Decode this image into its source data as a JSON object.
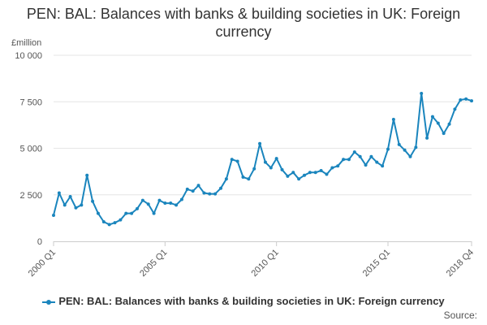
{
  "chart_data": {
    "type": "line",
    "title": "PEN: BAL: Balances with banks & building societies in UK: Foreign currency",
    "ylabel": "£million",
    "xlabel": "",
    "ylim": [
      0,
      10000
    ],
    "yticks": [
      0,
      2500,
      5000,
      7500,
      10000
    ],
    "ytick_labels": [
      "0",
      "2 500",
      "5 000",
      "7 500",
      "10 000"
    ],
    "xtick_labels": [
      "2000 Q1",
      "2005 Q1",
      "2010 Q1",
      "2015 Q1",
      "2018 Q4"
    ],
    "grid": true,
    "legend_position": "bottom",
    "color": "#1a85bd",
    "categories": [
      "2000 Q1",
      "2000 Q2",
      "2000 Q3",
      "2000 Q4",
      "2001 Q1",
      "2001 Q2",
      "2001 Q3",
      "2001 Q4",
      "2002 Q1",
      "2002 Q2",
      "2002 Q3",
      "2002 Q4",
      "2003 Q1",
      "2003 Q2",
      "2003 Q3",
      "2003 Q4",
      "2004 Q1",
      "2004 Q2",
      "2004 Q3",
      "2004 Q4",
      "2005 Q1",
      "2005 Q2",
      "2005 Q3",
      "2005 Q4",
      "2006 Q1",
      "2006 Q2",
      "2006 Q3",
      "2006 Q4",
      "2007 Q1",
      "2007 Q2",
      "2007 Q3",
      "2007 Q4",
      "2008 Q1",
      "2008 Q2",
      "2008 Q3",
      "2008 Q4",
      "2009 Q1",
      "2009 Q2",
      "2009 Q3",
      "2009 Q4",
      "2010 Q1",
      "2010 Q2",
      "2010 Q3",
      "2010 Q4",
      "2011 Q1",
      "2011 Q2",
      "2011 Q3",
      "2011 Q4",
      "2012 Q1",
      "2012 Q2",
      "2012 Q3",
      "2012 Q4",
      "2013 Q1",
      "2013 Q2",
      "2013 Q3",
      "2013 Q4",
      "2014 Q1",
      "2014 Q2",
      "2014 Q3",
      "2014 Q4",
      "2015 Q1",
      "2015 Q2",
      "2015 Q3",
      "2015 Q4",
      "2016 Q1",
      "2016 Q2",
      "2016 Q3",
      "2016 Q4",
      "2017 Q1",
      "2017 Q2",
      "2017 Q3",
      "2017 Q4",
      "2018 Q1",
      "2018 Q2",
      "2018 Q3",
      "2018 Q4"
    ],
    "series": [
      {
        "name": "PEN: BAL: Balances with banks & building societies in UK: Foreign currency",
        "values": [
          1400,
          2600,
          1950,
          2400,
          1800,
          1950,
          3550,
          2150,
          1500,
          1050,
          900,
          1000,
          1150,
          1500,
          1500,
          1750,
          2200,
          2000,
          1500,
          2200,
          2050,
          2050,
          1950,
          2250,
          2800,
          2700,
          3000,
          2600,
          2550,
          2550,
          2850,
          3350,
          4400,
          4300,
          3450,
          3350,
          3900,
          5250,
          4250,
          3950,
          4450,
          3850,
          3500,
          3700,
          3350,
          3550,
          3700,
          3700,
          3800,
          3600,
          3950,
          4050,
          4400,
          4400,
          4800,
          4550,
          4100,
          4550,
          4250,
          4050,
          4950,
          6550,
          5200,
          4900,
          4550,
          5050,
          7950,
          5550,
          6700,
          6350,
          5800,
          6300,
          7100,
          7600,
          7650,
          7550
        ]
      }
    ]
  },
  "source_label": "Source:"
}
